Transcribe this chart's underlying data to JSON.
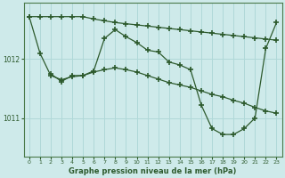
{
  "background_color": "#ceeaea",
  "grid_color": "#b0d8d8",
  "line_color": "#2d5a2d",
  "title": "Graphe pression niveau de la mer (hPa)",
  "xlim": [
    -0.5,
    23.5
  ],
  "ylim": [
    1010.35,
    1012.95
  ],
  "yticks": [
    1011,
    1012
  ],
  "xticks": [
    0,
    1,
    2,
    3,
    4,
    5,
    6,
    7,
    8,
    9,
    10,
    11,
    12,
    13,
    14,
    15,
    16,
    17,
    18,
    19,
    20,
    21,
    22,
    23
  ],
  "series1_x": [
    0,
    1,
    2,
    3,
    4,
    5,
    6,
    7,
    8,
    9,
    10,
    11,
    12,
    13,
    14,
    15,
    16,
    17,
    18,
    19,
    20,
    21,
    22,
    23
  ],
  "series1_y": [
    1012.72,
    1012.72,
    1012.72,
    1012.72,
    1012.72,
    1012.72,
    1012.68,
    1012.65,
    1012.62,
    1012.6,
    1012.58,
    1012.56,
    1012.54,
    1012.52,
    1012.5,
    1012.48,
    1012.46,
    1012.44,
    1012.42,
    1012.4,
    1012.38,
    1012.36,
    1012.34,
    1012.32
  ],
  "series2_x": [
    0,
    1,
    2,
    3,
    4,
    5,
    6,
    7,
    8,
    9,
    10,
    11,
    12,
    13,
    14,
    15,
    16,
    17,
    18,
    19,
    20,
    21,
    22,
    23
  ],
  "series2_y": [
    1012.72,
    1012.1,
    1011.72,
    1011.65,
    1011.7,
    1011.72,
    1011.78,
    1011.82,
    1011.85,
    1011.82,
    1011.78,
    1011.72,
    1011.66,
    1011.6,
    1011.56,
    1011.52,
    1011.46,
    1011.4,
    1011.36,
    1011.3,
    1011.25,
    1011.18,
    1011.12,
    1011.08
  ],
  "series3_x": [
    2,
    3,
    4,
    5,
    6,
    7,
    8,
    9,
    10,
    11,
    12,
    13,
    14,
    15,
    16,
    17,
    18,
    19,
    20,
    21,
    22,
    23
  ],
  "series3_y": [
    1011.75,
    1011.62,
    1011.72,
    1011.72,
    1011.8,
    1012.35,
    1012.5,
    1012.38,
    1012.28,
    1012.15,
    1012.12,
    1011.95,
    1011.9,
    1011.82,
    1011.22,
    1010.82,
    1010.72,
    1010.72,
    1010.82,
    1011.0,
    1012.18,
    1012.62
  ]
}
